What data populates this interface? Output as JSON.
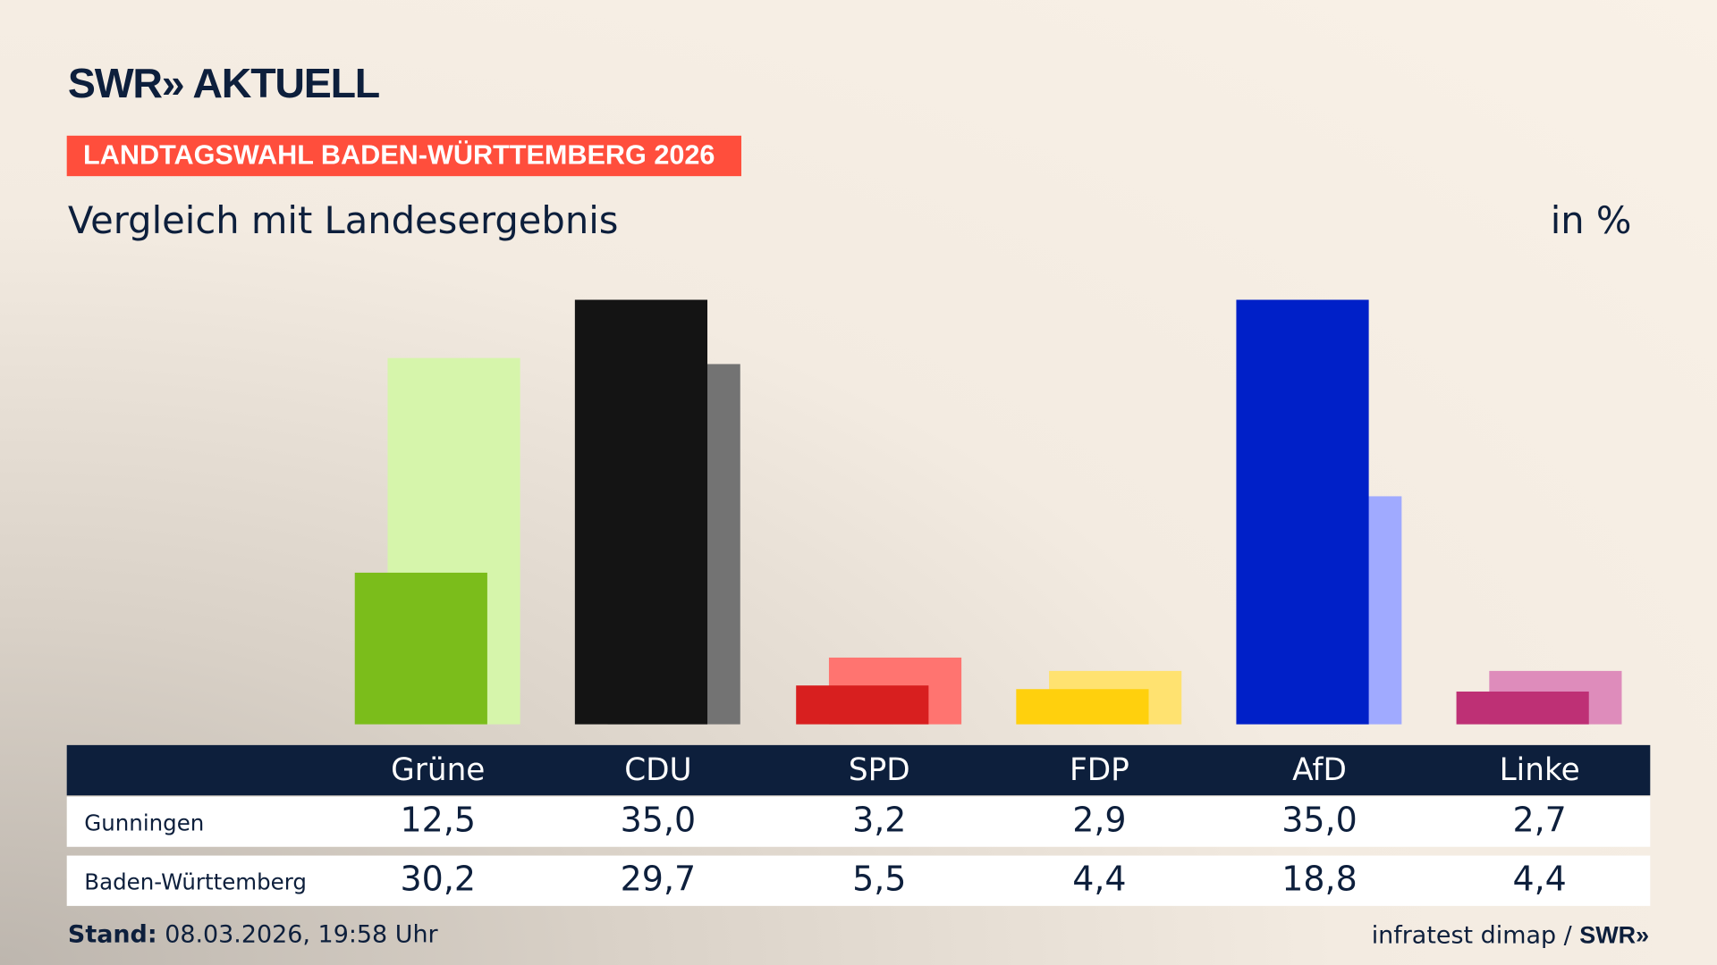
{
  "header": {
    "logo": "SWR» AKTUELL",
    "banner": "LANDTAGSWAHL BADEN-WÜRTTEMBERG 2026",
    "subtitle": "Vergleich mit Landesergebnis",
    "unit": "in %"
  },
  "chart_data": {
    "type": "bar",
    "categories": [
      "Grüne",
      "CDU",
      "SPD",
      "FDP",
      "AfD",
      "Linke"
    ],
    "series": [
      {
        "name": "Gunningen",
        "values": [
          12.5,
          35.0,
          3.2,
          2.9,
          35.0,
          2.7
        ],
        "labels": [
          "12,5",
          "35,0",
          "3,2",
          "2,9",
          "35,0",
          "2,7"
        ],
        "colors": [
          "#7bbd1b",
          "#141414",
          "#d81f1f",
          "#ffd00d",
          "#0020c8",
          "#be3075"
        ]
      },
      {
        "name": "Baden-Württemberg",
        "values": [
          30.2,
          29.7,
          5.5,
          4.4,
          18.8,
          4.4
        ],
        "labels": [
          "30,2",
          "29,7",
          "5,5",
          "4,4",
          "18,8",
          "4,4"
        ],
        "colors": [
          "#d6f5ab",
          "#737373",
          "#ff7470",
          "#ffe270",
          "#a0aaff",
          "#de8cbb"
        ]
      }
    ],
    "ylim": [
      0,
      35
    ],
    "grid": false
  },
  "footer": {
    "stand_label": "Stand:",
    "stand_value": "08.03.2026, 19:58 Uhr",
    "source": "infratest dimap / ",
    "source_logo": "SWR»"
  }
}
